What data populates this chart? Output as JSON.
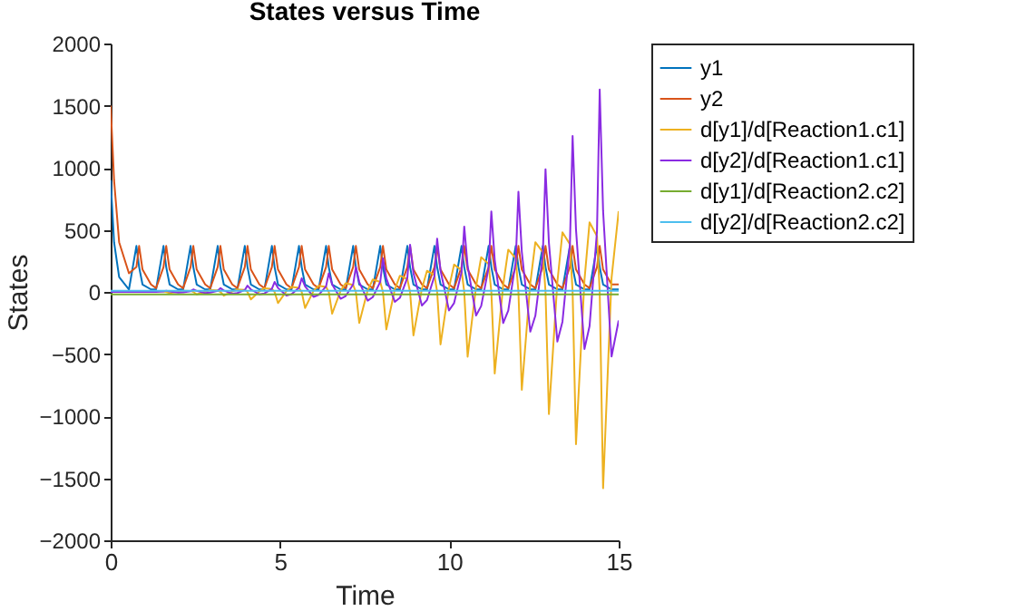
{
  "chart_data": {
    "type": "line",
    "title": "States versus Time",
    "xlabel": "Time",
    "ylabel": "States",
    "xlim": [
      0,
      15
    ],
    "xticks": [
      0,
      5,
      10,
      15
    ],
    "ylim": [
      -2000,
      2000
    ],
    "yticks": [
      -2000,
      -1500,
      -1000,
      -500,
      0,
      500,
      1000,
      1500,
      2000
    ],
    "legend": "right",
    "x": [
      0,
      0.1,
      0.25,
      0.54,
      0.76,
      0.84,
      0.94,
      1.19,
      1.34,
      1.56,
      1.64,
      1.74,
      1.99,
      2.14,
      2.36,
      2.44,
      2.54,
      2.79,
      2.94,
      3.16,
      3.24,
      3.34,
      3.59,
      3.74,
      3.96,
      4.04,
      4.14,
      4.39,
      4.54,
      4.76,
      4.84,
      4.94,
      5.19,
      5.34,
      5.56,
      5.64,
      5.74,
      5.99,
      6.14,
      6.36,
      6.44,
      6.54,
      6.79,
      6.94,
      7.16,
      7.24,
      7.34,
      7.59,
      7.74,
      7.96,
      8.04,
      8.14,
      8.39,
      8.54,
      8.76,
      8.84,
      8.94,
      9.19,
      9.34,
      9.56,
      9.64,
      9.74,
      9.99,
      10.14,
      10.36,
      10.44,
      10.54,
      10.79,
      10.94,
      11.16,
      11.24,
      11.34,
      11.59,
      11.74,
      11.96,
      12.04,
      12.14,
      12.39,
      12.54,
      12.76,
      12.84,
      12.94,
      13.19,
      13.34,
      13.56,
      13.64,
      13.74,
      13.99,
      14.14,
      14.36,
      14.44,
      14.54,
      14.79,
      15
    ],
    "series": [
      {
        "name": "y1",
        "color": "#0072bd",
        "values": [
          900,
          400,
          120,
          20,
          370,
          200,
          60,
          20,
          20,
          370,
          200,
          60,
          20,
          20,
          370,
          200,
          60,
          20,
          20,
          370,
          200,
          60,
          20,
          20,
          370,
          200,
          60,
          20,
          20,
          370,
          200,
          60,
          20,
          20,
          370,
          200,
          60,
          20,
          20,
          370,
          200,
          60,
          20,
          20,
          370,
          200,
          60,
          20,
          20,
          370,
          200,
          60,
          20,
          20,
          370,
          200,
          60,
          20,
          20,
          370,
          200,
          60,
          20,
          20,
          370,
          200,
          60,
          20,
          20,
          370,
          200,
          60,
          20,
          20,
          370,
          200,
          60,
          20,
          20,
          370,
          200,
          60,
          20,
          20,
          370,
          200,
          60,
          20,
          20,
          370,
          200,
          60,
          20,
          20
        ]
      },
      {
        "name": "y2",
        "color": "#d95319",
        "values": [
          1500,
          900,
          400,
          150,
          200,
          370,
          180,
          60,
          30,
          200,
          370,
          180,
          60,
          30,
          200,
          370,
          180,
          60,
          30,
          200,
          370,
          180,
          60,
          30,
          200,
          370,
          180,
          60,
          30,
          200,
          370,
          180,
          60,
          30,
          200,
          370,
          180,
          60,
          30,
          200,
          370,
          180,
          60,
          30,
          200,
          370,
          180,
          60,
          30,
          200,
          370,
          180,
          60,
          30,
          200,
          370,
          180,
          60,
          30,
          200,
          370,
          180,
          60,
          30,
          200,
          370,
          180,
          60,
          30,
          200,
          370,
          180,
          60,
          30,
          200,
          370,
          180,
          60,
          30,
          200,
          370,
          180,
          60,
          30,
          200,
          370,
          180,
          60,
          30,
          200,
          370,
          180,
          60,
          60
        ]
      },
      {
        "name": "d[y1]/d[Reaction1.c1]",
        "color": "#edb120",
        "values": [
          null,
          null,
          null,
          null,
          null,
          null,
          null,
          null,
          5,
          4,
          0,
          -10,
          1,
          10,
          8,
          0,
          -20,
          2,
          15,
          12,
          0,
          -30,
          3,
          20,
          16,
          0,
          -60,
          4,
          30,
          24,
          0,
          -90,
          6,
          40,
          32,
          0,
          -130,
          8,
          50,
          40,
          0,
          -175,
          10,
          70,
          56,
          0,
          -250,
          14,
          100,
          80,
          0,
          -302,
          20,
          130,
          104,
          0,
          -350,
          26,
          170,
          136,
          0,
          -423,
          34,
          220,
          176,
          0,
          -521,
          44,
          280,
          224,
          0,
          -657,
          56,
          340,
          272,
          0,
          -788,
          68,
          400,
          320,
          0,
          -983,
          80,
          480,
          384,
          0,
          -1226,
          96,
          560,
          448,
          0,
          -1581,
          112,
          650
        ]
      },
      {
        "name": "d[y2]/d[Reaction1.c1]",
        "color": "#8a2be2",
        "values": [
          0,
          0,
          0,
          0,
          0,
          0,
          0,
          0,
          0,
          3,
          10,
          4,
          -5,
          -3,
          6,
          20,
          8,
          -10,
          -6,
          9,
          30,
          12,
          -15,
          -9,
          15,
          50,
          20,
          -20,
          -12,
          24,
          80,
          32,
          -30,
          -18,
          33,
          110,
          44,
          -40,
          -24,
          45,
          150,
          60,
          -55,
          -33,
          60,
          200,
          80,
          -70,
          -42,
          81,
          270,
          108,
          -80,
          -48,
          114,
          380,
          152,
          -110,
          -66,
          128,
          428,
          171,
          -150,
          -90,
          158,
          526,
          210,
          -190,
          -114,
          194,
          647,
          259,
          -250,
          -150,
          242,
          807,
          323,
          -320,
          -192,
          296,
          988,
          395,
          -400,
          -240,
          377,
          1255,
          502,
          -460,
          -276,
          489,
          1630,
          652,
          -520,
          -230
        ]
      },
      {
        "name": "d[y1]/d[Reaction2.c2]",
        "color": "#77ac30",
        "values": [
          -20,
          -20,
          -20,
          -20,
          -20,
          -20,
          -20,
          -20,
          -20,
          -20,
          -20,
          -20,
          -20,
          -20,
          -20,
          -20,
          -20,
          -20,
          -20,
          -20,
          -20,
          -20,
          -20,
          -20,
          -20,
          -20,
          -20,
          -20,
          -20,
          -20,
          -20,
          -20,
          -20,
          -20,
          -20,
          -20,
          -20,
          -20,
          -20,
          -20,
          -20,
          -20,
          -20,
          -20,
          -20,
          -20,
          -20,
          -20,
          -20,
          -20,
          -20,
          -20,
          -20,
          -20,
          -20,
          -20,
          -20,
          -20,
          -20,
          -20,
          -20,
          -20,
          -20,
          -20,
          -20,
          -20,
          -20,
          -20,
          -20,
          -20,
          -20,
          -20,
          -20,
          -20,
          -20,
          -20,
          -20,
          -20,
          -20,
          -20,
          -20,
          -20,
          -20,
          -20,
          -20,
          -20,
          -20,
          -20,
          -20,
          -20,
          -20,
          -20,
          -20,
          -20
        ]
      },
      {
        "name": "d[y2]/d[Reaction2.c2]",
        "color": "#4dbeee",
        "values": [
          10,
          10,
          10,
          10,
          10,
          10,
          10,
          10,
          10,
          10,
          10,
          10,
          10,
          10,
          10,
          10,
          10,
          10,
          10,
          10,
          10,
          10,
          10,
          10,
          10,
          10,
          10,
          10,
          10,
          10,
          10,
          10,
          10,
          10,
          10,
          10,
          10,
          10,
          10,
          10,
          10,
          10,
          10,
          10,
          10,
          10,
          10,
          10,
          10,
          10,
          10,
          10,
          10,
          10,
          10,
          10,
          10,
          10,
          10,
          10,
          10,
          10,
          10,
          10,
          10,
          10,
          10,
          10,
          10,
          10,
          10,
          10,
          10,
          10,
          10,
          10,
          10,
          10,
          10,
          10,
          10,
          10,
          10,
          10,
          10,
          10,
          10,
          10,
          10,
          10,
          10,
          10,
          10,
          10
        ]
      }
    ]
  }
}
